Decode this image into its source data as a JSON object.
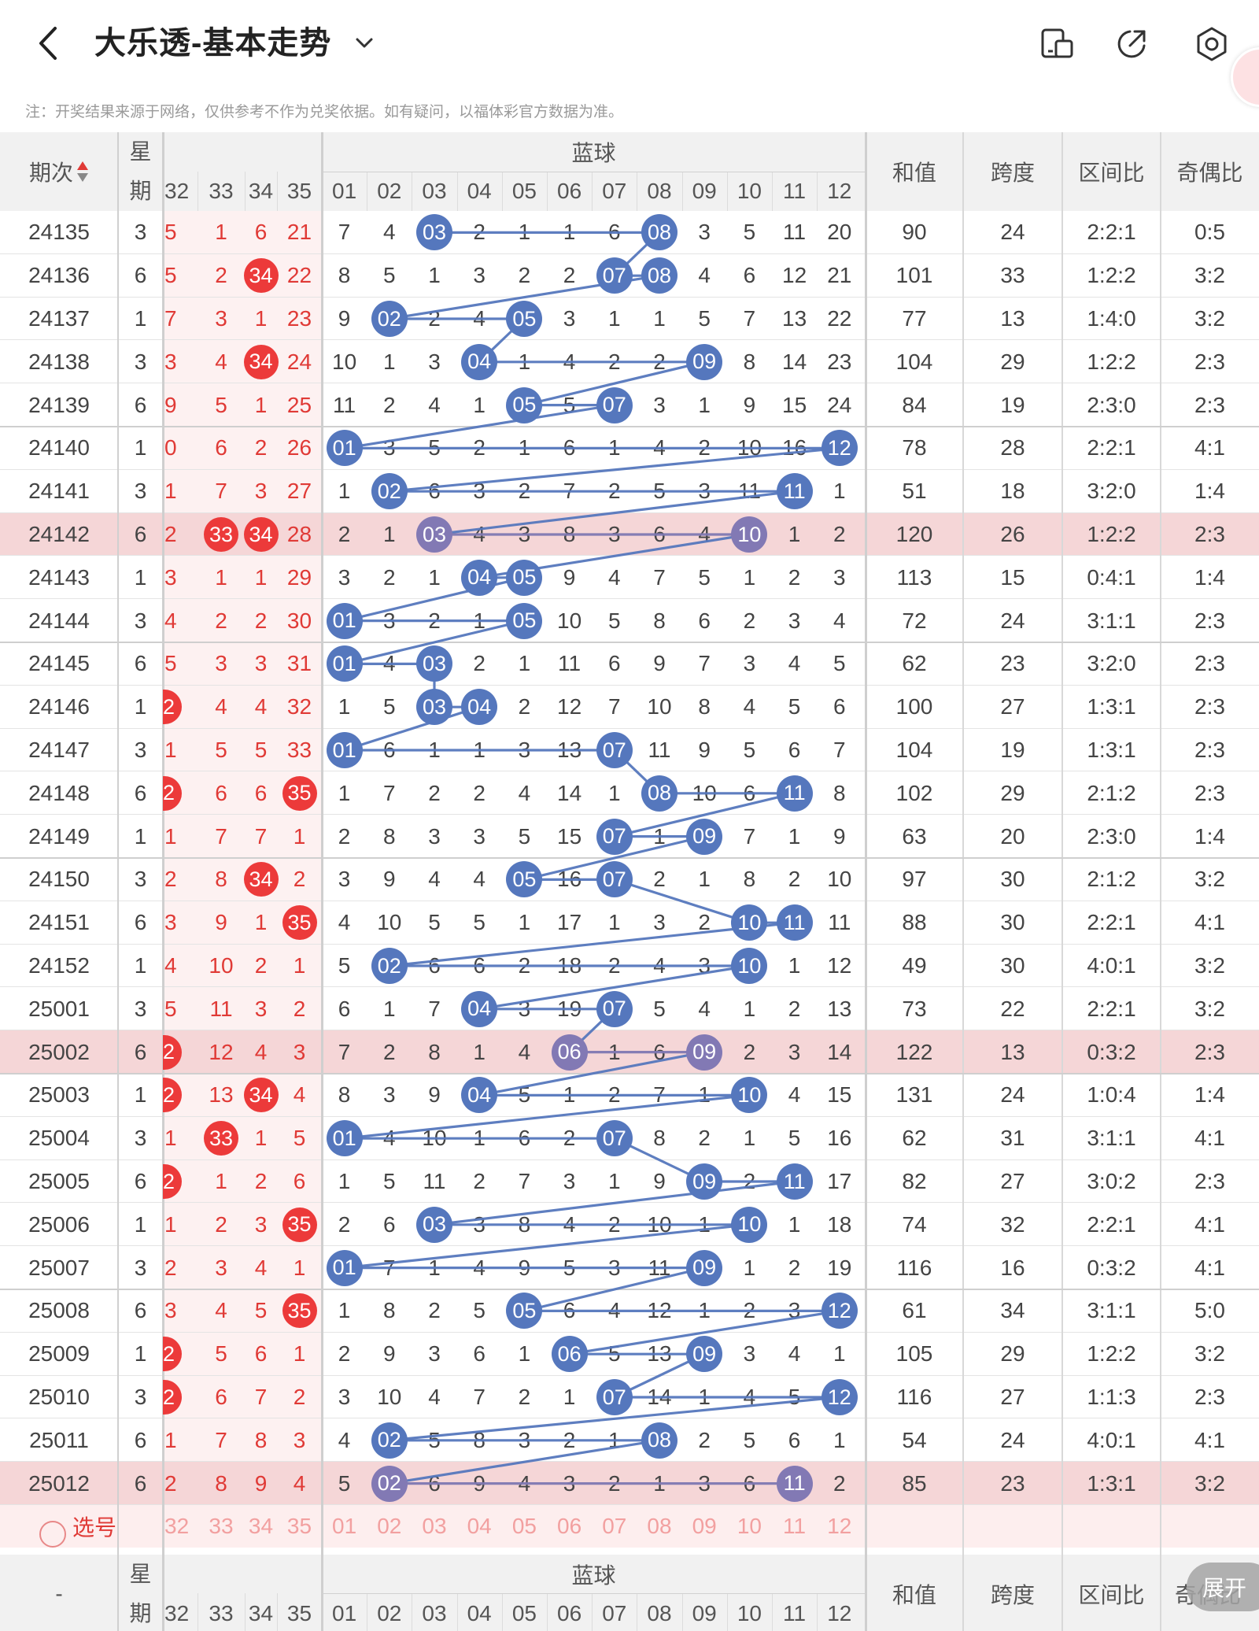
{
  "header": {
    "title": "大乐透-基本走势"
  },
  "notice": "注：开奖结果来源于网络，仅供参考不作为兑奖依据。如有疑问，以福体彩官方数据为准。",
  "icons": {
    "back": "back-arrow-icon",
    "dropdown": "chevron-down-icon",
    "phone": "phone-screen-icon",
    "share": "share-icon",
    "settings": "settings-gear-icon",
    "avatar": "avatar-icon"
  },
  "colors": {
    "red": "#ec3a3a",
    "blue_ball": "#5577bd",
    "highlight_row": "#f5d6d7",
    "select_row": "#fdeeee"
  },
  "table": {
    "col_issue": "期次",
    "col_week": "星期",
    "front_cols": [
      "32",
      "33",
      "34",
      "35"
    ],
    "blue_label": "蓝球",
    "blue_cols": [
      "01",
      "02",
      "03",
      "04",
      "05",
      "06",
      "07",
      "08",
      "09",
      "10",
      "11",
      "12"
    ],
    "col_sum": "和值",
    "col_span": "跨度",
    "col_zone": "区间比",
    "col_odd": "奇偶比",
    "select_label": "选号",
    "footer_issue": "-",
    "expand_label": "展开",
    "rows": [
      {
        "issue": "24135",
        "week": "3",
        "f": [
          "5",
          "1",
          "6",
          "21"
        ],
        "fb": [],
        "b": [
          "7",
          "4",
          "03",
          "2",
          "1",
          "1",
          "6",
          "08",
          "3",
          "5",
          "11",
          "20"
        ],
        "bh": [
          3,
          8
        ],
        "sum": "90",
        "span": "24",
        "zone": "2:2:1",
        "odd": "0:5",
        "hl": false
      },
      {
        "issue": "24136",
        "week": "6",
        "f": [
          "5",
          "2",
          "34",
          "22"
        ],
        "fb": [
          3
        ],
        "b": [
          "8",
          "5",
          "1",
          "3",
          "2",
          "2",
          "07",
          "08",
          "4",
          "6",
          "12",
          "21"
        ],
        "bh": [
          7,
          8
        ],
        "sum": "101",
        "span": "33",
        "zone": "1:2:2",
        "odd": "3:2",
        "hl": false
      },
      {
        "issue": "24137",
        "week": "1",
        "f": [
          "7",
          "3",
          "1",
          "23"
        ],
        "fb": [],
        "b": [
          "9",
          "02",
          "2",
          "4",
          "05",
          "3",
          "1",
          "1",
          "5",
          "7",
          "13",
          "22"
        ],
        "bh": [
          2,
          5
        ],
        "sum": "77",
        "span": "13",
        "zone": "1:4:0",
        "odd": "3:2",
        "hl": false
      },
      {
        "issue": "24138",
        "week": "3",
        "f": [
          "3",
          "4",
          "34",
          "24"
        ],
        "fb": [
          3
        ],
        "b": [
          "10",
          "1",
          "3",
          "04",
          "1",
          "4",
          "2",
          "2",
          "09",
          "8",
          "14",
          "23"
        ],
        "bh": [
          4,
          9
        ],
        "sum": "104",
        "span": "29",
        "zone": "1:2:2",
        "odd": "2:3",
        "hl": false
      },
      {
        "issue": "24139",
        "week": "6",
        "f": [
          "9",
          "5",
          "1",
          "25"
        ],
        "fb": [],
        "b": [
          "11",
          "2",
          "4",
          "1",
          "05",
          "5",
          "07",
          "3",
          "1",
          "9",
          "15",
          "24"
        ],
        "bh": [
          5,
          7
        ],
        "sum": "84",
        "span": "19",
        "zone": "2:3:0",
        "odd": "2:3",
        "hl": false
      },
      {
        "issue": "24140",
        "week": "1",
        "f": [
          "0",
          "6",
          "2",
          "26"
        ],
        "fb": [],
        "b": [
          "01",
          "3",
          "5",
          "2",
          "1",
          "6",
          "1",
          "4",
          "2",
          "10",
          "16",
          "12"
        ],
        "bh": [
          1,
          12
        ],
        "sum": "78",
        "span": "28",
        "zone": "2:2:1",
        "odd": "4:1",
        "hl": false
      },
      {
        "issue": "24141",
        "week": "3",
        "f": [
          "1",
          "7",
          "3",
          "27"
        ],
        "fb": [],
        "b": [
          "1",
          "02",
          "6",
          "3",
          "2",
          "7",
          "2",
          "5",
          "3",
          "11",
          "11",
          "1"
        ],
        "bh": [
          2,
          11
        ],
        "sum": "51",
        "span": "18",
        "zone": "3:2:0",
        "odd": "1:4",
        "hl": false
      },
      {
        "issue": "24142",
        "week": "6",
        "f": [
          "2",
          "33",
          "34",
          "28"
        ],
        "fb": [
          2,
          3
        ],
        "b": [
          "2",
          "1",
          "03",
          "4",
          "3",
          "8",
          "3",
          "6",
          "4",
          "10",
          "1",
          "2"
        ],
        "bh": [
          3,
          10
        ],
        "sum": "120",
        "span": "26",
        "zone": "1:2:2",
        "odd": "2:3",
        "hl": true
      },
      {
        "issue": "24143",
        "week": "1",
        "f": [
          "3",
          "1",
          "1",
          "29"
        ],
        "fb": [],
        "b": [
          "3",
          "2",
          "1",
          "04",
          "05",
          "9",
          "4",
          "7",
          "5",
          "1",
          "2",
          "3"
        ],
        "bh": [
          4,
          5
        ],
        "sum": "113",
        "span": "15",
        "zone": "0:4:1",
        "odd": "1:4",
        "hl": false
      },
      {
        "issue": "24144",
        "week": "3",
        "f": [
          "4",
          "2",
          "2",
          "30"
        ],
        "fb": [],
        "b": [
          "01",
          "3",
          "2",
          "1",
          "05",
          "10",
          "5",
          "8",
          "6",
          "2",
          "3",
          "4"
        ],
        "bh": [
          1,
          5
        ],
        "sum": "72",
        "span": "24",
        "zone": "3:1:1",
        "odd": "2:3",
        "hl": false
      },
      {
        "issue": "24145",
        "week": "6",
        "f": [
          "5",
          "3",
          "3",
          "31"
        ],
        "fb": [],
        "b": [
          "01",
          "4",
          "03",
          "2",
          "1",
          "11",
          "6",
          "9",
          "7",
          "3",
          "4",
          "5"
        ],
        "bh": [
          1,
          3
        ],
        "sum": "62",
        "span": "23",
        "zone": "3:2:0",
        "odd": "2:3",
        "hl": false
      },
      {
        "issue": "24146",
        "week": "1",
        "f": [
          "2",
          "4",
          "4",
          "32"
        ],
        "fb": [
          1
        ],
        "b": [
          "1",
          "5",
          "03",
          "04",
          "2",
          "12",
          "7",
          "10",
          "8",
          "4",
          "5",
          "6"
        ],
        "bh": [
          3,
          4
        ],
        "sum": "100",
        "span": "27",
        "zone": "1:3:1",
        "odd": "2:3",
        "hl": false
      },
      {
        "issue": "24147",
        "week": "3",
        "f": [
          "1",
          "5",
          "5",
          "33"
        ],
        "fb": [],
        "b": [
          "01",
          "6",
          "1",
          "1",
          "3",
          "13",
          "07",
          "11",
          "9",
          "5",
          "6",
          "7"
        ],
        "bh": [
          1,
          7
        ],
        "sum": "104",
        "span": "19",
        "zone": "1:3:1",
        "odd": "2:3",
        "hl": false
      },
      {
        "issue": "24148",
        "week": "6",
        "f": [
          "2",
          "6",
          "6",
          "35"
        ],
        "fb": [
          1,
          4
        ],
        "b": [
          "1",
          "7",
          "2",
          "2",
          "4",
          "14",
          "1",
          "08",
          "10",
          "6",
          "11",
          "8"
        ],
        "bh": [
          8,
          11
        ],
        "sum": "102",
        "span": "29",
        "zone": "2:1:2",
        "odd": "2:3",
        "hl": false
      },
      {
        "issue": "24149",
        "week": "1",
        "f": [
          "1",
          "7",
          "7",
          "1"
        ],
        "fb": [],
        "b": [
          "2",
          "8",
          "3",
          "3",
          "5",
          "15",
          "07",
          "1",
          "09",
          "7",
          "1",
          "9"
        ],
        "bh": [
          7,
          9
        ],
        "sum": "63",
        "span": "20",
        "zone": "2:3:0",
        "odd": "1:4",
        "hl": false
      },
      {
        "issue": "24150",
        "week": "3",
        "f": [
          "2",
          "8",
          "34",
          "2"
        ],
        "fb": [
          3
        ],
        "b": [
          "3",
          "9",
          "4",
          "4",
          "05",
          "16",
          "07",
          "2",
          "1",
          "8",
          "2",
          "10"
        ],
        "bh": [
          5,
          7
        ],
        "sum": "97",
        "span": "30",
        "zone": "2:1:2",
        "odd": "3:2",
        "hl": false
      },
      {
        "issue": "24151",
        "week": "6",
        "f": [
          "3",
          "9",
          "1",
          "35"
        ],
        "fb": [
          4
        ],
        "b": [
          "4",
          "10",
          "5",
          "5",
          "1",
          "17",
          "1",
          "3",
          "2",
          "10",
          "11",
          "11"
        ],
        "bh": [
          10,
          11
        ],
        "sum": "88",
        "span": "30",
        "zone": "2:2:1",
        "odd": "4:1",
        "hl": false
      },
      {
        "issue": "24152",
        "week": "1",
        "f": [
          "4",
          "10",
          "2",
          "1"
        ],
        "fb": [],
        "b": [
          "5",
          "02",
          "6",
          "6",
          "2",
          "18",
          "2",
          "4",
          "3",
          "10",
          "1",
          "12"
        ],
        "bh": [
          2,
          10
        ],
        "sum": "49",
        "span": "30",
        "zone": "4:0:1",
        "odd": "3:2",
        "hl": false
      },
      {
        "issue": "25001",
        "week": "3",
        "f": [
          "5",
          "11",
          "3",
          "2"
        ],
        "fb": [],
        "b": [
          "6",
          "1",
          "7",
          "04",
          "3",
          "19",
          "07",
          "5",
          "4",
          "1",
          "2",
          "13"
        ],
        "bh": [
          4,
          7
        ],
        "sum": "73",
        "span": "22",
        "zone": "2:2:1",
        "odd": "3:2",
        "hl": false
      },
      {
        "issue": "25002",
        "week": "6",
        "f": [
          "2",
          "12",
          "4",
          "3"
        ],
        "fb": [
          1
        ],
        "b": [
          "7",
          "2",
          "8",
          "1",
          "4",
          "06",
          "1",
          "6",
          "09",
          "2",
          "3",
          "14"
        ],
        "bh": [
          6,
          9
        ],
        "sum": "122",
        "span": "13",
        "zone": "0:3:2",
        "odd": "2:3",
        "hl": true
      },
      {
        "issue": "25003",
        "week": "1",
        "f": [
          "2",
          "13",
          "34",
          "4"
        ],
        "fb": [
          1,
          3
        ],
        "b": [
          "8",
          "3",
          "9",
          "04",
          "5",
          "1",
          "2",
          "7",
          "1",
          "10",
          "4",
          "15"
        ],
        "bh": [
          4,
          10
        ],
        "sum": "131",
        "span": "24",
        "zone": "1:0:4",
        "odd": "1:4",
        "hl": false
      },
      {
        "issue": "25004",
        "week": "3",
        "f": [
          "1",
          "33",
          "1",
          "5"
        ],
        "fb": [
          2
        ],
        "b": [
          "01",
          "4",
          "10",
          "1",
          "6",
          "2",
          "07",
          "8",
          "2",
          "1",
          "5",
          "16"
        ],
        "bh": [
          1,
          7
        ],
        "sum": "62",
        "span": "31",
        "zone": "3:1:1",
        "odd": "4:1",
        "hl": false
      },
      {
        "issue": "25005",
        "week": "6",
        "f": [
          "2",
          "1",
          "2",
          "6"
        ],
        "fb": [
          1
        ],
        "b": [
          "1",
          "5",
          "11",
          "2",
          "7",
          "3",
          "1",
          "9",
          "09",
          "2",
          "11",
          "17"
        ],
        "bh": [
          9,
          11
        ],
        "sum": "82",
        "span": "27",
        "zone": "3:0:2",
        "odd": "2:3",
        "hl": false
      },
      {
        "issue": "25006",
        "week": "1",
        "f": [
          "1",
          "2",
          "3",
          "35"
        ],
        "fb": [
          4
        ],
        "b": [
          "2",
          "6",
          "03",
          "3",
          "8",
          "4",
          "2",
          "10",
          "1",
          "10",
          "1",
          "18"
        ],
        "bh": [
          3,
          10
        ],
        "sum": "74",
        "span": "32",
        "zone": "2:2:1",
        "odd": "4:1",
        "hl": false
      },
      {
        "issue": "25007",
        "week": "3",
        "f": [
          "2",
          "3",
          "4",
          "1"
        ],
        "fb": [],
        "b": [
          "01",
          "7",
          "1",
          "4",
          "9",
          "5",
          "3",
          "11",
          "09",
          "1",
          "2",
          "19"
        ],
        "bh": [
          1,
          9
        ],
        "sum": "116",
        "span": "16",
        "zone": "0:3:2",
        "odd": "4:1",
        "hl": false
      },
      {
        "issue": "25008",
        "week": "6",
        "f": [
          "3",
          "4",
          "5",
          "35"
        ],
        "fb": [
          4
        ],
        "b": [
          "1",
          "8",
          "2",
          "5",
          "05",
          "6",
          "4",
          "12",
          "1",
          "2",
          "3",
          "12"
        ],
        "bh": [
          5,
          12
        ],
        "sum": "61",
        "span": "34",
        "zone": "3:1:1",
        "odd": "5:0",
        "hl": false
      },
      {
        "issue": "25009",
        "week": "1",
        "f": [
          "2",
          "5",
          "6",
          "1"
        ],
        "fb": [
          1
        ],
        "b": [
          "2",
          "9",
          "3",
          "6",
          "1",
          "06",
          "5",
          "13",
          "09",
          "3",
          "4",
          "1"
        ],
        "bh": [
          6,
          9
        ],
        "sum": "105",
        "span": "29",
        "zone": "1:2:2",
        "odd": "3:2",
        "hl": false
      },
      {
        "issue": "25010",
        "week": "3",
        "f": [
          "2",
          "6",
          "7",
          "2"
        ],
        "fb": [
          1
        ],
        "b": [
          "3",
          "10",
          "4",
          "7",
          "2",
          "1",
          "07",
          "14",
          "1",
          "4",
          "5",
          "12"
        ],
        "bh": [
          7,
          12
        ],
        "sum": "116",
        "span": "27",
        "zone": "1:1:3",
        "odd": "2:3",
        "hl": false
      },
      {
        "issue": "25011",
        "week": "6",
        "f": [
          "1",
          "7",
          "8",
          "3"
        ],
        "fb": [],
        "b": [
          "4",
          "02",
          "5",
          "8",
          "3",
          "2",
          "1",
          "08",
          "2",
          "5",
          "6",
          "1"
        ],
        "bh": [
          2,
          8
        ],
        "sum": "54",
        "span": "24",
        "zone": "4:0:1",
        "odd": "4:1",
        "hl": false
      },
      {
        "issue": "25012",
        "week": "6",
        "f": [
          "2",
          "8",
          "9",
          "4"
        ],
        "fb": [],
        "b": [
          "5",
          "02",
          "6",
          "9",
          "4",
          "3",
          "2",
          "1",
          "3",
          "6",
          "11",
          "2"
        ],
        "bh": [
          2,
          11
        ],
        "sum": "85",
        "span": "23",
        "zone": "1:3:1",
        "odd": "3:2",
        "hl": true
      }
    ]
  }
}
